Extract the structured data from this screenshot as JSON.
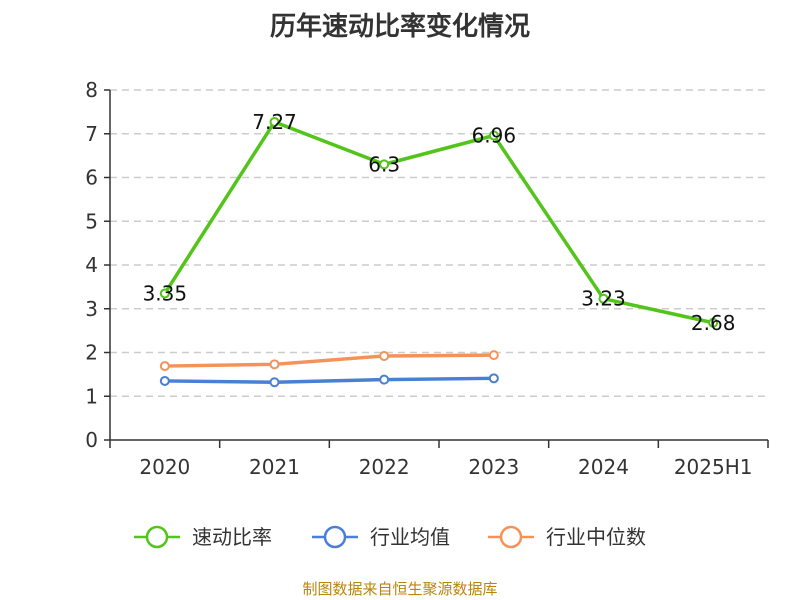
{
  "chart_data": {
    "type": "line",
    "title": "历年速动比率变化情况",
    "categories": [
      "2020",
      "2021",
      "2022",
      "2023",
      "2024",
      "2025H1"
    ],
    "ylim": [
      0,
      8
    ],
    "yticks": [
      0,
      1,
      2,
      3,
      4,
      5,
      6,
      7,
      8
    ],
    "grid": true,
    "legend_position": "bottom",
    "series": [
      {
        "name": "速动比率",
        "color": "#52c41a",
        "values": [
          3.35,
          7.27,
          6.3,
          6.96,
          3.23,
          2.68
        ],
        "labels": [
          "3.35",
          "7.27",
          "6.3",
          "6.96",
          "3.23",
          "2.68"
        ]
      },
      {
        "name": "行业均值",
        "color": "#4a7fd6",
        "values": [
          1.35,
          1.32,
          1.38,
          1.41,
          null,
          null
        ]
      },
      {
        "name": "行业中位数",
        "color": "#f5925a",
        "values": [
          1.69,
          1.73,
          1.92,
          1.94,
          null,
          null
        ]
      }
    ]
  },
  "source": "制图数据来自恒生聚源数据库"
}
